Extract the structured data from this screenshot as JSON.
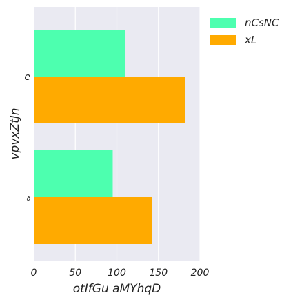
{
  "chart_data": {
    "type": "bar",
    "orientation": "horizontal",
    "categories": [
      "e",
      "ð"
    ],
    "series": [
      {
        "name": "nCsNC",
        "color": "#4dffaf",
        "values": [
          110,
          95
        ]
      },
      {
        "name": "xL",
        "color": "#ffaa00",
        "values": [
          182,
          142
        ]
      }
    ],
    "xlabel": "otIfGu aMYhqD",
    "ylabel": "vpvxZtJn",
    "xlim": [
      0,
      200
    ],
    "xticks": [
      0,
      50,
      100,
      150,
      200
    ],
    "grid": true,
    "legend_position": "top-right",
    "background": "#eaeaf2"
  }
}
